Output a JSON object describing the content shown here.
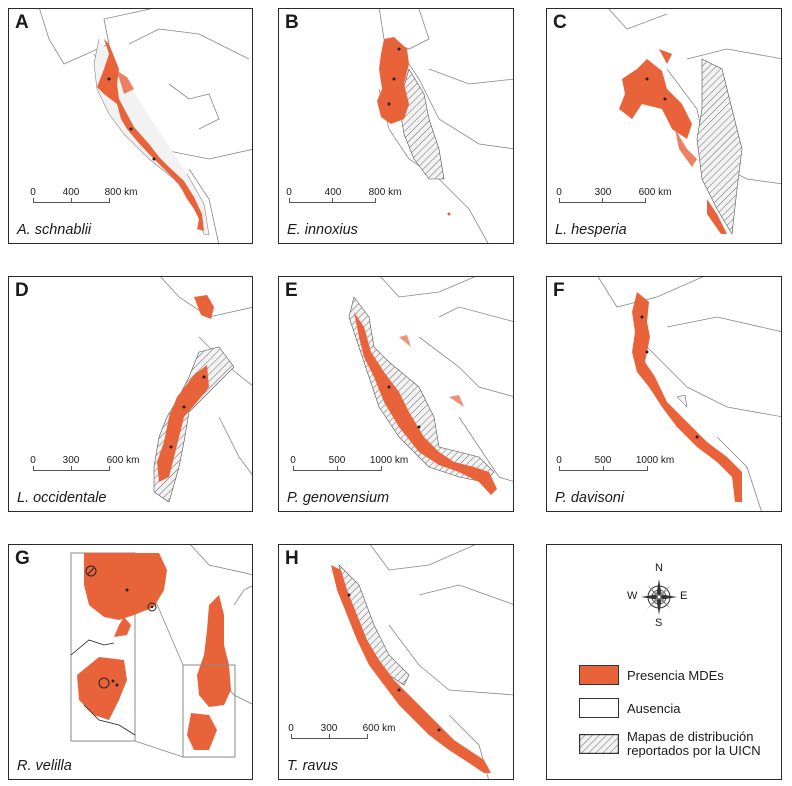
{
  "colors": {
    "presence": "#e8623a",
    "iucn_hatch": "#555555",
    "border": "#888888"
  },
  "panels": [
    {
      "letter": "A",
      "species": "A. schnablii",
      "scale": [
        "0",
        "400",
        "800 km"
      ]
    },
    {
      "letter": "B",
      "species": "E. innoxius",
      "scale": [
        "0",
        "400",
        "800 km"
      ]
    },
    {
      "letter": "C",
      "species": "L. hesperia",
      "scale": [
        "0",
        "300",
        "600 km"
      ]
    },
    {
      "letter": "D",
      "species": "L. occidentale",
      "scale": [
        "0",
        "300",
        "600 km"
      ]
    },
    {
      "letter": "E",
      "species": "P. genovensium",
      "scale": [
        "0",
        "500",
        "1000 km"
      ]
    },
    {
      "letter": "F",
      "species": "P. davisoni",
      "scale": [
        "0",
        "500",
        "1000 km"
      ]
    },
    {
      "letter": "G",
      "species": "R. velilla"
    },
    {
      "letter": "H",
      "species": "T. ravus",
      "scale": [
        "0",
        "300",
        "600 km"
      ]
    }
  ],
  "legend": {
    "compass": {
      "n": "N",
      "s": "S",
      "e": "E",
      "w": "W"
    },
    "presence_label": "Presencia MDEs",
    "absence_label": "Ausencia",
    "iucn_label_line1": "Mapas de distribución",
    "iucn_label_line2": "reportados por la UICN",
    "compass_icon": "compass-rose-icon"
  }
}
